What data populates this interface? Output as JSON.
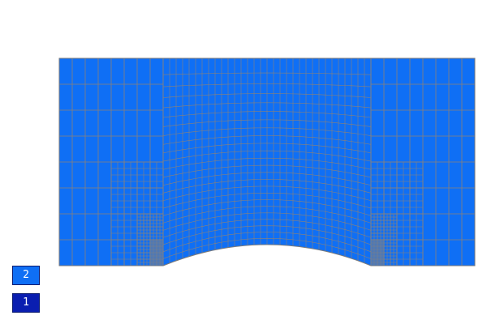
{
  "colors": {
    "region_2": "#0f6ff5",
    "region_1": "#0a1eb0",
    "mesh_line": "#8c8278",
    "outline": "#7a7a7a",
    "background": "#ffffff"
  },
  "legend": [
    {
      "id": "2",
      "label": "2",
      "color": "#0f6ff5"
    },
    {
      "id": "1",
      "label": "1",
      "color": "#0a1eb0"
    }
  ]
}
